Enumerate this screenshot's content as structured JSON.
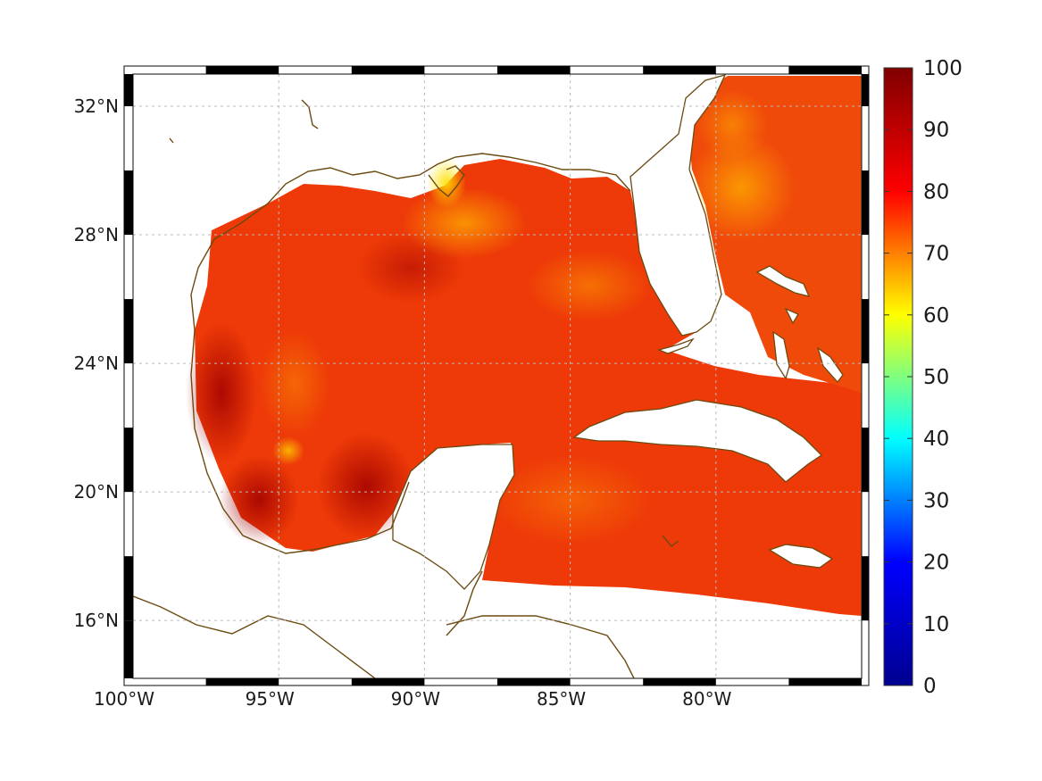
{
  "chart_data": {
    "type": "heatmap",
    "title": "",
    "xlabel": "",
    "ylabel": "",
    "xlim": [
      -100,
      -75
    ],
    "ylim": [
      14.2,
      33
    ],
    "x_ticks": [
      {
        "value": -100,
        "label": "100°W"
      },
      {
        "value": -95,
        "label": "95°W"
      },
      {
        "value": -90,
        "label": "90°W"
      },
      {
        "value": -85,
        "label": "85°W"
      },
      {
        "value": -80,
        "label": "80°W"
      }
    ],
    "y_ticks": [
      {
        "value": 16,
        "label": "16°N"
      },
      {
        "value": 20,
        "label": "20°N"
      },
      {
        "value": 24,
        "label": "24°N"
      },
      {
        "value": 28,
        "label": "28°N"
      },
      {
        "value": 32,
        "label": "32°N"
      }
    ],
    "grid": true,
    "colorbar": {
      "range": [
        0,
        100
      ],
      "ticks": [
        "0",
        "10",
        "20",
        "30",
        "40",
        "50",
        "60",
        "70",
        "80",
        "90",
        "100"
      ],
      "colormap": [
        "#00008f",
        "#0000ff",
        "#00ffff",
        "#ffff00",
        "#ff0000",
        "#800000"
      ]
    },
    "field_summary": {
      "dominant_range": [
        75,
        92
      ],
      "high_regions": [
        "western Gulf near Mexican coast",
        "Bay of Campeche"
      ],
      "low_regions": [
        "Mississippi delta coast",
        "off northeast Florida Atlantic"
      ]
    },
    "colors": {
      "coastline": "#6b4a10",
      "gridline": "#c8c8c8",
      "land": "#ffffff"
    }
  }
}
